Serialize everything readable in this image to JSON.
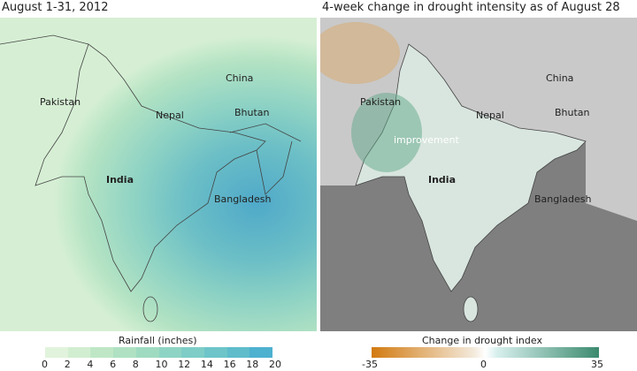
{
  "left": {
    "title": "August 1-31, 2012",
    "labels": {
      "pakistan": "Pakistan",
      "china": "China",
      "nepal": "Nepal",
      "bhutan": "Bhutan",
      "india": "India",
      "bangladesh": "Bangladesh"
    },
    "legend": {
      "title": "Rainfall (inches)",
      "ticks": [
        "0",
        "2",
        "4",
        "6",
        "8",
        "10",
        "12",
        "14",
        "16",
        "18",
        "20"
      ],
      "colors": [
        "#e1f3dc",
        "#d2eed1",
        "#bfe7c6",
        "#afe1c2",
        "#9fdbc0",
        "#8ed4c4",
        "#7ecdc7",
        "#6dc5c9",
        "#5ebccb",
        "#4eb1d0"
      ]
    }
  },
  "right": {
    "title": "4-week change in drought intensity as of August 28",
    "labels": {
      "pakistan": "Pakistan",
      "china": "China",
      "nepal": "Nepal",
      "bhutan": "Bhutan",
      "india": "India",
      "bangladesh": "Bangladesh",
      "improvement": "improvement"
    },
    "legend": {
      "title": "Change in drought index",
      "ticks": [
        "-35",
        "0",
        "35"
      ],
      "colors": [
        "#d27a10",
        "#f3eadc",
        "#3b8a6e"
      ]
    }
  }
}
